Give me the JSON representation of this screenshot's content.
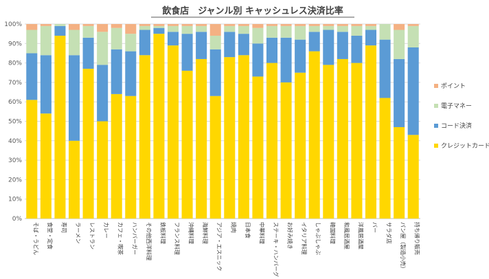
{
  "chart_data": {
    "type": "bar",
    "stacked": true,
    "percent_stacked": true,
    "title": "飲食店　ジャンル別 キャッシュレス決済比率",
    "xlabel": "",
    "ylabel": "",
    "ylim": [
      0,
      100
    ],
    "y_ticks": [
      "0%",
      "10%",
      "20%",
      "30%",
      "40%",
      "50%",
      "60%",
      "70%",
      "80%",
      "90%",
      "100%"
    ],
    "grid": true,
    "legend_position": "right",
    "categories": [
      "そば・うどん",
      "食堂・定食",
      "寿司",
      "ラーメン",
      "レストラン",
      "カレー",
      "カフェ・喫茶",
      "ハンバーガー",
      "その他西洋料理",
      "鉄板料理",
      "フランス料理",
      "沖縄料理",
      "海鮮料理",
      "アジア・エスニック",
      "焼肉",
      "日本食",
      "中華料理",
      "ステーキ・ハンバーグ",
      "お好み焼き",
      "イタリア料理",
      "しゃぶしゃぶ",
      "韓国料理",
      "和風居酒屋",
      "洋風居酒屋",
      "バー",
      "サラダ店",
      "パン屋（製造小売）",
      "持ち帰り販売"
    ],
    "series": [
      {
        "name": "クレジットカード",
        "color": "#FFD700",
        "values": [
          61,
          54,
          94,
          40,
          77,
          50,
          64,
          63,
          84,
          95,
          89,
          76,
          82,
          63,
          83,
          84,
          73,
          80,
          70,
          75,
          86,
          79,
          82,
          80,
          89,
          62,
          47,
          43
        ]
      },
      {
        "name": "コード決済",
        "color": "#5B9BD5",
        "values": [
          24,
          30,
          5,
          44,
          16,
          29,
          23,
          23,
          13,
          3,
          7,
          19,
          14,
          24,
          13,
          11,
          17,
          13,
          23,
          17,
          10,
          18,
          14,
          14,
          8,
          30,
          35,
          45
        ]
      },
      {
        "name": "電子マネー",
        "color": "#C5E0B4",
        "values": [
          12,
          15,
          1,
          13,
          6,
          17,
          11,
          9,
          2,
          1,
          3,
          4,
          3,
          7,
          3,
          4,
          8,
          6,
          6,
          7,
          3,
          2,
          3,
          5,
          2,
          8,
          15,
          11
        ]
      },
      {
        "name": "ポイント",
        "color": "#F4B183",
        "values": [
          3,
          1,
          0,
          3,
          1,
          4,
          2,
          5,
          1,
          1,
          1,
          1,
          1,
          6,
          1,
          1,
          2,
          1,
          1,
          1,
          1,
          1,
          1,
          1,
          1,
          0,
          3,
          1
        ]
      }
    ]
  }
}
